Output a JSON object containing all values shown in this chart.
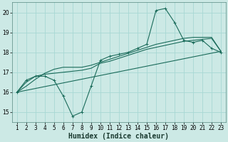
{
  "xlabel": "Humidex (Indice chaleur)",
  "bg_color": "#cce9e5",
  "grid_color": "#a8d8d4",
  "line_color": "#1a6b5a",
  "xlim": [
    0.5,
    23.5
  ],
  "ylim": [
    14.5,
    20.5
  ],
  "yticks": [
    15,
    16,
    17,
    18,
    19,
    20
  ],
  "xticks": [
    1,
    2,
    3,
    4,
    5,
    6,
    7,
    8,
    9,
    10,
    11,
    12,
    13,
    14,
    15,
    16,
    17,
    18,
    19,
    20,
    21,
    22,
    23
  ],
  "series1_x": [
    1,
    2,
    3,
    4,
    5,
    6,
    7,
    8,
    9,
    10,
    11,
    12,
    13,
    14,
    15,
    16,
    17,
    18,
    19,
    20,
    21,
    22,
    23
  ],
  "series1_y": [
    16.0,
    16.6,
    16.8,
    16.8,
    16.6,
    15.8,
    14.8,
    15.0,
    16.3,
    17.6,
    17.8,
    17.9,
    18.0,
    18.2,
    18.4,
    20.1,
    20.2,
    19.5,
    18.6,
    18.5,
    18.6,
    18.2,
    18.0
  ],
  "series2_x": [
    1,
    2,
    3,
    4,
    5,
    6,
    7,
    8,
    9,
    10,
    11,
    12,
    13,
    14,
    15,
    16,
    17,
    18,
    19,
    20,
    21,
    22,
    23
  ],
  "series2_y": [
    16.0,
    16.5,
    16.8,
    16.9,
    16.95,
    17.0,
    17.05,
    17.1,
    17.2,
    17.45,
    17.55,
    17.7,
    17.85,
    18.0,
    18.15,
    18.25,
    18.35,
    18.45,
    18.55,
    18.6,
    18.65,
    18.7,
    18.05
  ],
  "series3_x": [
    1,
    2,
    3,
    4,
    5,
    6,
    7,
    8,
    9,
    10,
    11,
    12,
    13,
    14,
    15,
    16,
    17,
    18,
    19,
    20,
    21,
    22,
    23
  ],
  "series3_y": [
    16.0,
    16.3,
    16.65,
    16.95,
    17.15,
    17.25,
    17.25,
    17.25,
    17.35,
    17.5,
    17.65,
    17.8,
    17.95,
    18.1,
    18.25,
    18.4,
    18.5,
    18.6,
    18.7,
    18.75,
    18.75,
    18.75,
    18.05
  ],
  "series4_x": [
    1,
    23
  ],
  "series4_y": [
    16.0,
    18.05
  ],
  "tick_fontsize": 5.5,
  "label_fontsize": 7.0
}
